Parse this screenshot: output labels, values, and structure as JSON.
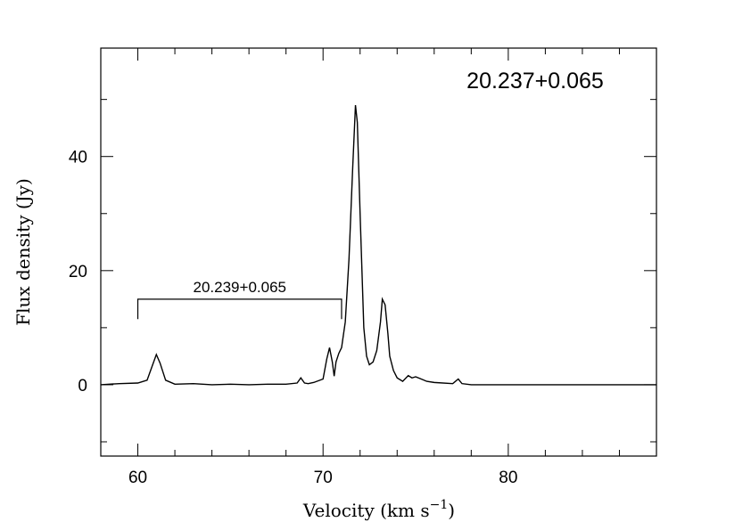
{
  "chart_data": {
    "type": "line",
    "title": "20.237+0.065",
    "xlabel": "Velocity (km s",
    "xlabel_sup": "−1",
    "xlabel_close": ")",
    "ylabel": "Flux density (Jy)",
    "xlim": [
      58,
      88
    ],
    "ylim": [
      -12.5,
      59
    ],
    "x_ticks": [
      60,
      70,
      80
    ],
    "y_ticks": [
      0,
      20,
      40
    ],
    "grid": false,
    "annotation": {
      "label": "20.239+0.065",
      "x_start": 60,
      "x_end": 71,
      "y_bar": 15,
      "y_tip": 11.5
    },
    "series": [
      {
        "x": [
          58.0,
          59.0,
          60.0,
          60.5,
          60.8,
          61.0,
          61.2,
          61.5,
          62.0,
          63.0,
          64.0,
          65.0,
          66.0,
          67.0,
          68.0,
          68.6,
          68.8,
          69.0,
          69.2,
          69.5,
          70.0,
          70.2,
          70.35,
          70.5,
          70.6,
          70.7,
          70.85,
          71.0,
          71.2,
          71.4,
          71.6,
          71.75,
          71.85,
          72.0,
          72.1,
          72.2,
          72.35,
          72.5,
          72.7,
          72.9,
          73.1,
          73.2,
          73.35,
          73.5,
          73.6,
          73.8,
          74.0,
          74.3,
          74.6,
          74.8,
          75.0,
          75.3,
          75.6,
          76.0,
          77.0,
          77.3,
          77.5,
          78.0,
          80.0,
          82.0,
          84.0,
          86.0,
          88.0
        ],
        "y": [
          0,
          0.2,
          0.3,
          0.8,
          3.5,
          5.3,
          3.8,
          0.8,
          0.1,
          0.2,
          0,
          0.1,
          0,
          0.1,
          0.1,
          0.3,
          1.2,
          0.3,
          0.2,
          0.4,
          1.0,
          4.5,
          6.5,
          4.0,
          1.5,
          4.0,
          5.5,
          6.5,
          11.0,
          22.0,
          38.0,
          49.0,
          46.0,
          30.0,
          20.0,
          10.0,
          5.0,
          3.5,
          4.0,
          6.0,
          11.0,
          15.0,
          14.0,
          9.0,
          5.0,
          2.5,
          1.2,
          0.6,
          1.6,
          1.2,
          1.4,
          1.0,
          0.6,
          0.4,
          0.2,
          1.0,
          0.2,
          0,
          0,
          0,
          0,
          0,
          0
        ]
      }
    ]
  }
}
